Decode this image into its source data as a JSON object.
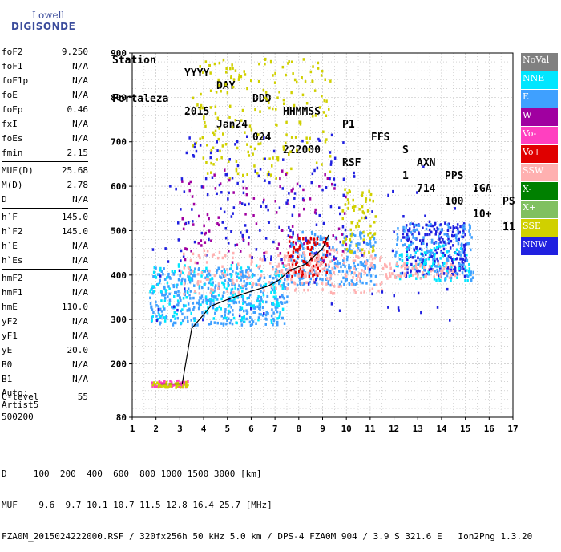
{
  "logo": {
    "line1": "Lowell",
    "line2": "DIGISONDE"
  },
  "header": {
    "labels": [
      "Station",
      "YYYY",
      "DAY",
      "DDD",
      "HHMMSS",
      "P1",
      "FFS",
      "S",
      "AXN",
      "PPS",
      "IGA",
      "PS"
    ],
    "values": [
      "Fortaleza",
      "2015",
      "Jan24",
      "024",
      "222000",
      "RSF",
      "1",
      "714",
      "100",
      "10+",
      "11"
    ]
  },
  "params": [
    {
      "name": "foF2",
      "value": "9.250"
    },
    {
      "name": "foF1",
      "value": "N/A"
    },
    {
      "name": "foF1p",
      "value": "N/A"
    },
    {
      "name": "foE",
      "value": "N/A"
    },
    {
      "name": "foEp",
      "value": "0.46"
    },
    {
      "name": "fxI",
      "value": "N/A"
    },
    {
      "name": "foEs",
      "value": "N/A"
    },
    {
      "name": "fmin",
      "value": "2.15"
    },
    {
      "sep": true
    },
    {
      "name": "MUF(D)",
      "value": "25.68"
    },
    {
      "name": "M(D)",
      "value": "2.78"
    },
    {
      "name": "D",
      "value": "N/A"
    },
    {
      "sep": true
    },
    {
      "name": "h`F",
      "value": "145.0"
    },
    {
      "name": "h`F2",
      "value": "145.0"
    },
    {
      "name": "h`E",
      "value": "N/A"
    },
    {
      "name": "h`Es",
      "value": "N/A"
    },
    {
      "sep": true
    },
    {
      "name": "hmF2",
      "value": "N/A"
    },
    {
      "name": "hmF1",
      "value": "N/A"
    },
    {
      "name": "hmE",
      "value": "110.0"
    },
    {
      "name": "yF2",
      "value": "N/A"
    },
    {
      "name": "yF1",
      "value": "N/A"
    },
    {
      "name": "yE",
      "value": "20.0"
    },
    {
      "name": "B0",
      "value": "N/A"
    },
    {
      "name": "B1",
      "value": "N/A"
    },
    {
      "sep": true
    },
    {
      "name": "C-level",
      "value": "55"
    }
  ],
  "auto": {
    "line1": "Auto:",
    "line2": "Artist5",
    "line3": "500200"
  },
  "legend": [
    {
      "label": "NoVal",
      "color": "#808080"
    },
    {
      "label": "NNE",
      "color": "#00e6ff"
    },
    {
      "label": "E",
      "color": "#3fa0ff"
    },
    {
      "label": "W",
      "color": "#a000a0"
    },
    {
      "label": "Vo-",
      "color": "#ff40c0"
    },
    {
      "label": "Vo+",
      "color": "#e00000"
    },
    {
      "label": "SSW",
      "color": "#ffb0b0"
    },
    {
      "label": "X-",
      "color": "#008000"
    },
    {
      "label": "X+",
      "color": "#80c060"
    },
    {
      "label": "SSE",
      "color": "#d0d000"
    },
    {
      "label": "NNW",
      "color": "#2020e0"
    }
  ],
  "footer": {
    "d_line": "D     100  200  400  600  800 1000 1500 3000 [km]",
    "muf_line": "MUF    9.6  9.7 10.1 10.7 11.5 12.8 16.4 25.7 [MHz]",
    "info_line": "FZA0M_2015024222000.RSF / 320fx256h 50 kHz 5.0 km / DPS-4 FZA0M 904 / 3.9 S 321.6 E   Ion2Png 1.3.20"
  },
  "chart_data": {
    "type": "scatter",
    "title": "",
    "xlabel": "",
    "ylabel": "",
    "xlim": [
      1,
      17
    ],
    "ylim": [
      80,
      900
    ],
    "x_ticks": [
      1,
      2,
      3,
      4,
      5,
      6,
      7,
      8,
      9,
      10,
      11,
      12,
      13,
      14,
      15,
      16,
      17
    ],
    "y_ticks": [
      80,
      200,
      300,
      400,
      500,
      600,
      700,
      800,
      900
    ],
    "grid": true,
    "legend_position": "right",
    "trace": {
      "name": "",
      "x": [
        2.2,
        3.1,
        3.5,
        4.3,
        5.0,
        5.8,
        6.7,
        7.2,
        7.6,
        8.3,
        9.0,
        9.25
      ],
      "y": [
        155,
        155,
        280,
        330,
        345,
        360,
        375,
        390,
        410,
        425,
        460,
        490
      ]
    },
    "echo_clusters": [
      {
        "series": "E",
        "x": [
          1.7,
          7.5
        ],
        "y": [
          290,
          420
        ],
        "count": 420
      },
      {
        "series": "NNE",
        "x": [
          1.7,
          7.5
        ],
        "y": [
          295,
          430
        ],
        "count": 180
      },
      {
        "series": "E",
        "x": [
          7.5,
          11.2
        ],
        "y": [
          380,
          500
        ],
        "count": 220
      },
      {
        "series": "Vo+",
        "x": [
          7.5,
          9.2
        ],
        "y": [
          400,
          490
        ],
        "count": 90
      },
      {
        "series": "SSW",
        "x": [
          7.0,
          11.5
        ],
        "y": [
          360,
          460
        ],
        "count": 150
      },
      {
        "series": "NNW",
        "x": [
          12.3,
          15.0
        ],
        "y": [
          400,
          520
        ],
        "count": 200
      },
      {
        "series": "E",
        "x": [
          12.0,
          15.3
        ],
        "y": [
          390,
          520
        ],
        "count": 150
      },
      {
        "series": "NNE",
        "x": [
          12.0,
          15.2
        ],
        "y": [
          390,
          470
        ],
        "count": 80
      },
      {
        "series": "SSW",
        "x": [
          11.5,
          14.6
        ],
        "y": [
          395,
          430
        ],
        "count": 70
      },
      {
        "series": "SSE",
        "x": [
          3.5,
          9.3
        ],
        "y": [
          620,
          890
        ],
        "count": 200
      },
      {
        "series": "NNW",
        "x": [
          2.7,
          10.0
        ],
        "y": [
          430,
          720
        ],
        "count": 120
      },
      {
        "series": "W",
        "x": [
          3.0,
          10.0
        ],
        "y": [
          430,
          640
        ],
        "count": 100
      },
      {
        "series": "SSE",
        "x": [
          9.8,
          11.2
        ],
        "y": [
          450,
          600
        ],
        "count": 70
      },
      {
        "series": "Vo-",
        "x": [
          1.8,
          3.3
        ],
        "y": [
          150,
          165
        ],
        "count": 60
      },
      {
        "series": "SSE",
        "x": [
          1.8,
          3.3
        ],
        "y": [
          150,
          162
        ],
        "count": 40
      },
      {
        "series": "SSW",
        "x": [
          3.0,
          7.0
        ],
        "y": [
          360,
          460
        ],
        "count": 80
      },
      {
        "series": "NNW",
        "x": [
          1.7,
          15.0
        ],
        "y": [
          300,
          650
        ],
        "count": 100
      }
    ]
  }
}
